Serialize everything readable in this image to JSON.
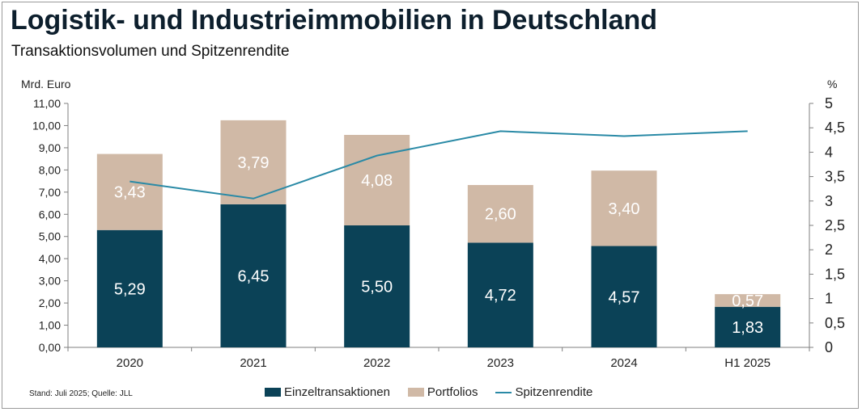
{
  "title": "Logistik- und Industrieimmobilien in Deutschland",
  "subtitle": "Transaktionsvolumen und Spitzenrendite",
  "footnote": "Stand: Juli 2025; Quelle: JLL",
  "colors": {
    "einzel": "#0b4257",
    "portfolio": "#d0b9a6",
    "rendite": "#2a8aa6"
  },
  "chart_data": {
    "type": "bar",
    "stacked": true,
    "categories": [
      "2020",
      "2021",
      "2022",
      "2023",
      "2024",
      "H1 2025"
    ],
    "series": [
      {
        "name": "Einzeltransaktionen",
        "type": "bar",
        "axis": "left",
        "values": [
          5.29,
          6.45,
          5.5,
          4.72,
          4.57,
          1.83
        ],
        "labels": [
          "5,29",
          "6,45",
          "5,50",
          "4,72",
          "4,57",
          "1,83"
        ]
      },
      {
        "name": "Portfolios",
        "type": "bar",
        "axis": "left",
        "values": [
          3.43,
          3.79,
          4.08,
          2.6,
          3.4,
          0.57
        ],
        "labels": [
          "3,43",
          "3,79",
          "4,08",
          "2,60",
          "3,40",
          "0,57"
        ]
      },
      {
        "name": "Spitzenrendite",
        "type": "line",
        "axis": "right",
        "values": [
          3.4,
          3.05,
          3.93,
          4.43,
          4.33,
          4.43
        ]
      }
    ],
    "y_left": {
      "label": "Mrd. Euro",
      "min": 0,
      "max": 11,
      "ticks": [
        "0,00",
        "1,00",
        "2,00",
        "3,00",
        "4,00",
        "5,00",
        "6,00",
        "7,00",
        "8,00",
        "9,00",
        "10,00",
        "11,00"
      ]
    },
    "y_right": {
      "label": "%",
      "min": 0,
      "max": 5,
      "ticks": [
        "0",
        "0,5",
        "1",
        "1,5",
        "2",
        "2,5",
        "3",
        "3,5",
        "4",
        "4,5",
        "5"
      ]
    },
    "grid": false,
    "legend_position": "bottom"
  }
}
